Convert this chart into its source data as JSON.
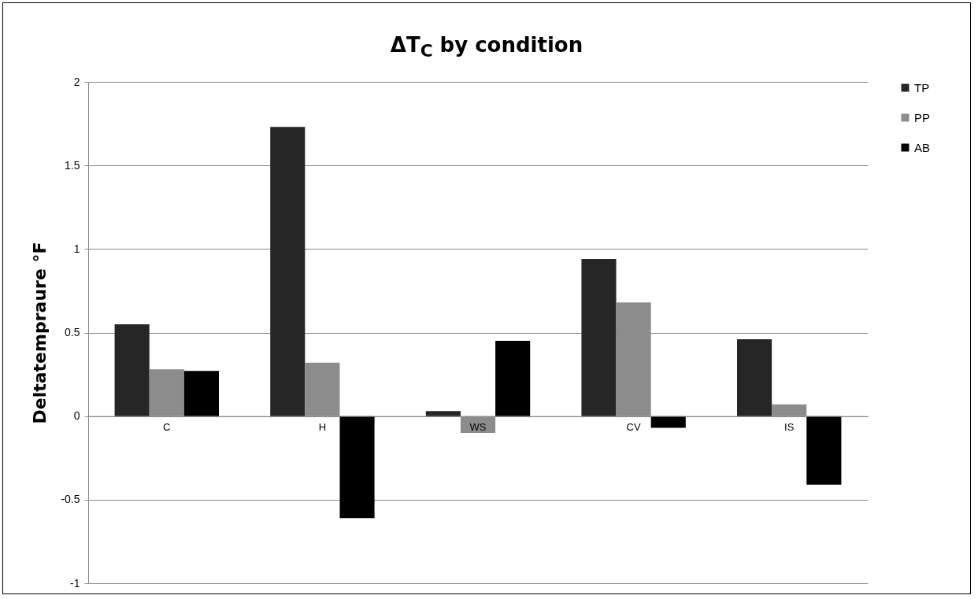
{
  "chart_data": {
    "type": "bar",
    "title": "ΔT$_{C}$ by condition",
    "ylabel": "Deltatempraure °F",
    "categories": [
      "C",
      "H",
      "WS",
      "CV",
      "IS"
    ],
    "series": [
      {
        "name": "TP",
        "color": "#262626",
        "values": [
          0.55,
          1.73,
          0.03,
          0.94,
          0.46
        ]
      },
      {
        "name": "PP",
        "color": "#8c8c8c",
        "values": [
          0.28,
          0.32,
          -0.1,
          0.68,
          0.07
        ]
      },
      {
        "name": "AB",
        "color": "#000000",
        "values": [
          0.27,
          -0.61,
          0.45,
          -0.07,
          -0.41
        ]
      }
    ],
    "ylim": [
      -1,
      2
    ],
    "yticks": [
      -1,
      -0.5,
      0,
      0.5,
      1,
      1.5,
      2
    ],
    "grid": "y",
    "legend": "right"
  }
}
